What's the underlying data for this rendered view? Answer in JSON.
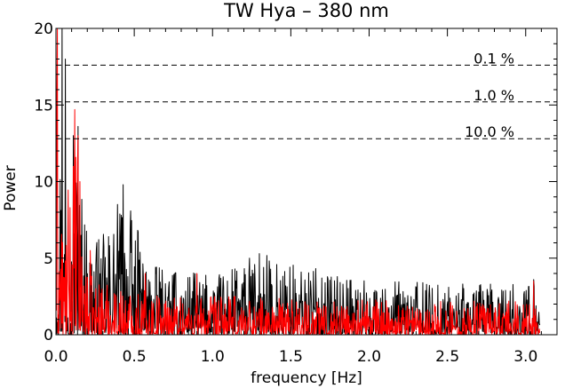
{
  "chart_data": {
    "type": "line",
    "title": "TW Hya – 380 nm",
    "xlabel": "frequency [Hz]",
    "ylabel": "Power",
    "xlim": [
      0,
      3.2
    ],
    "ylim": [
      0,
      20
    ],
    "grid": false,
    "legend": "none",
    "xticks": [
      "0.0",
      "0.5",
      "1.0",
      "1.5",
      "2.0",
      "2.5",
      "3.0"
    ],
    "yticks": [
      "0",
      "5",
      "10",
      "15",
      "20"
    ],
    "thresholds": [
      {
        "label": "0.1 %",
        "power": 17.6
      },
      {
        "label": "1.0 %",
        "power": 15.2
      },
      {
        "label": "10.0 %",
        "power": 12.8
      }
    ],
    "series": [
      {
        "color": "#000000",
        "x_start": 0.003,
        "x_step": 0.003,
        "x_end": 3.09,
        "envelope": [
          {
            "f": 0.0,
            "power": 20.0
          },
          {
            "f": 0.02,
            "power": 16.0
          },
          {
            "f": 0.05,
            "power": 9.0
          },
          {
            "f": 0.1,
            "power": 7.5
          },
          {
            "f": 0.13,
            "power": 13.5
          },
          {
            "f": 0.2,
            "power": 7.0
          },
          {
            "f": 0.3,
            "power": 6.5
          },
          {
            "f": 0.43,
            "power": 9.8
          },
          {
            "f": 0.6,
            "power": 4.5
          },
          {
            "f": 1.0,
            "power": 4.0
          },
          {
            "f": 1.3,
            "power": 5.3
          },
          {
            "f": 2.0,
            "power": 3.5
          },
          {
            "f": 3.09,
            "power": 3.3
          }
        ],
        "peaks": [
          {
            "f": 0.04,
            "power": 20.0
          },
          {
            "f": 0.06,
            "power": 18.0
          },
          {
            "f": 0.11,
            "power": 13.0
          },
          {
            "f": 0.14,
            "power": 13.6
          },
          {
            "f": 0.43,
            "power": 9.8
          },
          {
            "f": 1.3,
            "power": 5.3
          },
          {
            "f": 3.05,
            "power": 3.6
          }
        ]
      },
      {
        "color": "#ff0000",
        "x_start": 0.003,
        "x_step": 0.003,
        "x_end": 3.09,
        "envelope": [
          {
            "f": 0.0,
            "power": 20.0
          },
          {
            "f": 0.02,
            "power": 12.0
          },
          {
            "f": 0.05,
            "power": 6.0
          },
          {
            "f": 0.12,
            "power": 14.7
          },
          {
            "f": 0.2,
            "power": 4.0
          },
          {
            "f": 0.5,
            "power": 3.0
          },
          {
            "f": 1.0,
            "power": 2.6
          },
          {
            "f": 2.0,
            "power": 2.3
          },
          {
            "f": 3.09,
            "power": 2.2
          }
        ],
        "peaks": [
          {
            "f": 0.01,
            "power": 20.0
          },
          {
            "f": 0.12,
            "power": 14.7
          },
          {
            "f": 0.14,
            "power": 13.0
          },
          {
            "f": 0.22,
            "power": 5.5
          },
          {
            "f": 0.57,
            "power": 4.0
          },
          {
            "f": 0.9,
            "power": 4.0
          },
          {
            "f": 3.05,
            "power": 3.5
          }
        ]
      }
    ]
  }
}
